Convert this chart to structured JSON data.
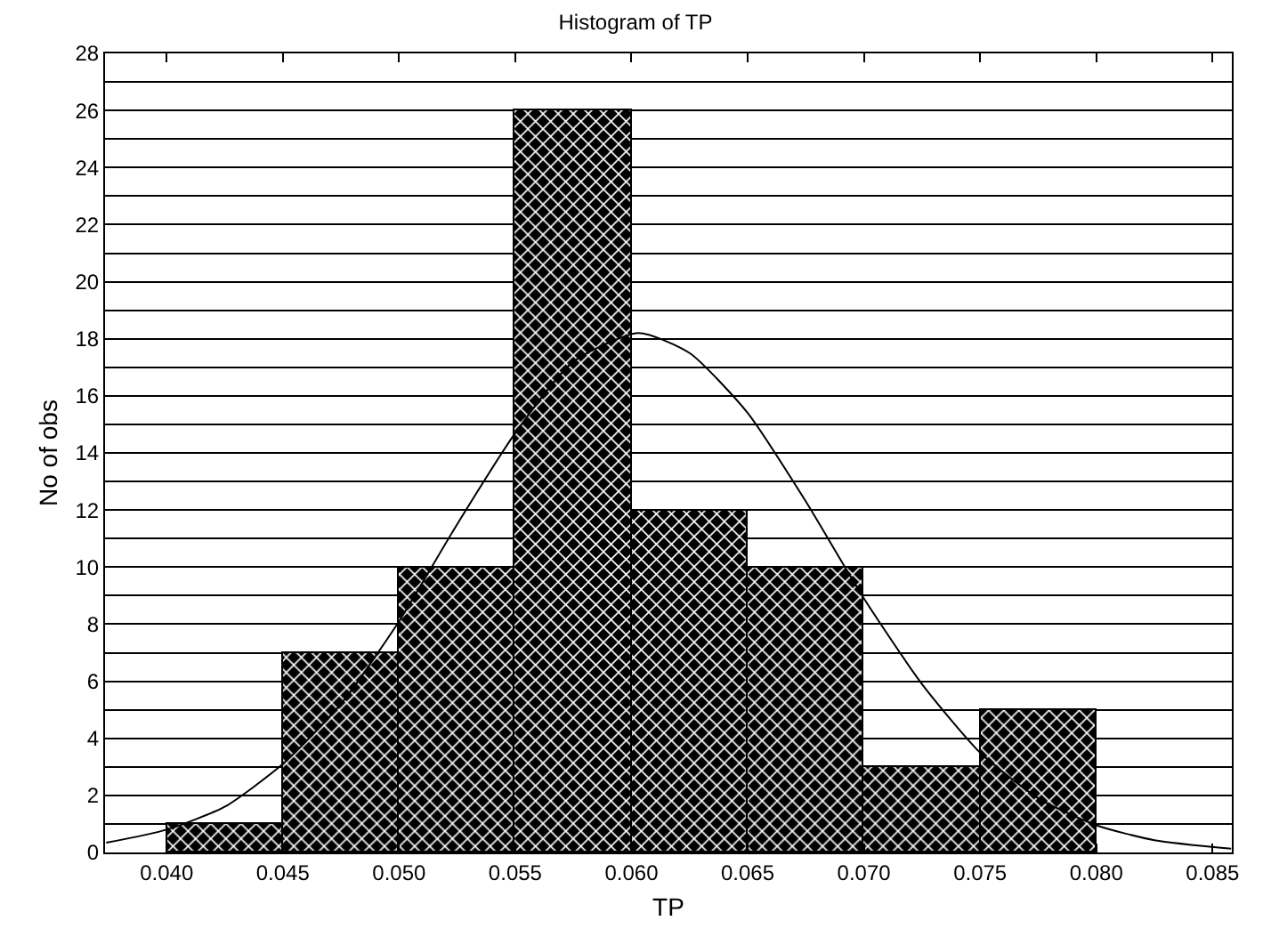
{
  "chart_data": {
    "type": "histogram",
    "title": "Histogram of TP",
    "xlabel": "TP",
    "ylabel": "No of obs",
    "bins": [
      0.04,
      0.045,
      0.05,
      0.055,
      0.06,
      0.065,
      0.07,
      0.075,
      0.08
    ],
    "values": [
      1,
      7,
      10,
      26,
      12,
      10,
      3,
      5
    ],
    "color": "#000000",
    "series": [
      {
        "type": "line",
        "color": "#000000",
        "x": [
          0.0374,
          0.04,
          0.0425,
          0.045,
          0.0475,
          0.05,
          0.0525,
          0.055,
          0.0575,
          0.0603,
          0.0625,
          0.065,
          0.0675,
          0.07,
          0.0725,
          0.075,
          0.0775,
          0.08,
          0.0825,
          0.0858
        ],
        "values": [
          0.34,
          0.8,
          1.6,
          3.1,
          5.2,
          8.1,
          11.5,
          14.7,
          17.2,
          18.2,
          17.5,
          15.4,
          12.3,
          8.9,
          5.9,
          3.5,
          1.9,
          0.95,
          0.43,
          0.13
        ]
      }
    ],
    "xlim": [
      0.03735,
      0.08583
    ],
    "xticks": [
      {
        "value": 0.04,
        "label": "0.040"
      },
      {
        "value": 0.045,
        "label": "0.045"
      },
      {
        "value": 0.05,
        "label": "0.050"
      },
      {
        "value": 0.055,
        "label": "0.055"
      },
      {
        "value": 0.06,
        "label": "0.060"
      },
      {
        "value": 0.065,
        "label": "0.065"
      },
      {
        "value": 0.07,
        "label": "0.070"
      },
      {
        "value": 0.075,
        "label": "0.075"
      },
      {
        "value": 0.08,
        "label": "0.080"
      },
      {
        "value": 0.085,
        "label": "0.085"
      }
    ],
    "ylim": [
      0,
      28
    ],
    "yticks": [
      0,
      {
        "value": 1,
        "label": null
      },
      2,
      {
        "value": 3,
        "label": null
      },
      4,
      {
        "value": 5,
        "label": null
      },
      6,
      {
        "value": 7,
        "label": null
      },
      8,
      {
        "value": 9,
        "label": null
      },
      10,
      {
        "value": 11,
        "label": null
      },
      12,
      {
        "value": 13,
        "label": null
      },
      14,
      {
        "value": 15,
        "label": null
      },
      16,
      {
        "value": 17,
        "label": null
      },
      18,
      {
        "value": 19,
        "label": null
      },
      20,
      {
        "value": 21,
        "label": null
      },
      22,
      {
        "value": 23,
        "label": null
      },
      24,
      {
        "value": 25,
        "label": null
      },
      26,
      {
        "value": 27,
        "label": null
      },
      28
    ],
    "grid": "y",
    "marker": "none",
    "line_style": "solid"
  }
}
